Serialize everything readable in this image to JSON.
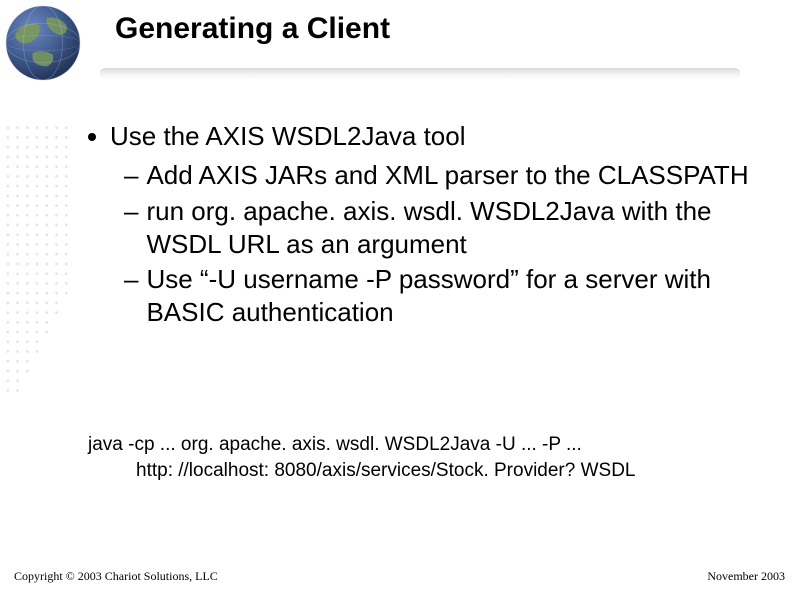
{
  "title": "Generating a Client",
  "bullet": {
    "main": "Use the AXIS WSDL2Java tool",
    "subs": [
      "Add AXIS JARs and XML parser to the CLASSPATH",
      "run org. apache. axis. wsdl. WSDL2Java with the WSDL URL as an argument",
      "Use “-U username -P password” for a server with BASIC authentication"
    ]
  },
  "command": {
    "line1": "java -cp ... org. apache. axis. wsdl. WSDL2Java -U ... -P ...",
    "line2": "http: //localhost: 8080/axis/services/Stock. Provider? WSDL"
  },
  "footer": {
    "left": "Copyright © 2003 Chariot Solutions, LLC",
    "right": "November 2003"
  },
  "colors": {
    "background": "#ffffff",
    "text": "#000000",
    "dot_grid": "#b9b9b9",
    "ocean": "#3f5a8e",
    "land": "#7a9a5a",
    "shadow": "#bcbcbc"
  },
  "decor": {
    "dot_rows": 28,
    "dot_cols": 7,
    "dot_gap": 10,
    "dot_r": 1.4
  }
}
